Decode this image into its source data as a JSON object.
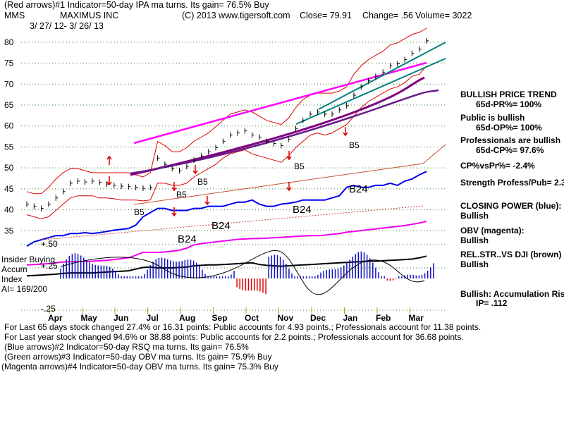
{
  "header": {
    "line1": "(Red arrows)#1 Indicator=50-day IPA ma turns. Its gain= 76.5% Buy",
    "symbol": "MMS",
    "company": "MAXIMUS INC",
    "copyright": "(C) 2013 www.tigersoft.com",
    "close": "Close=  79.91",
    "change": "Change= .56",
    "volume": "Volume= 3022",
    "date_range": "3/ 27/ 12- 3/ 26/ 13"
  },
  "sidebar": {
    "trend_title": "BULLISH PRICE TREND",
    "pr": "65d-PR%= 100%",
    "public": "Public is bullish",
    "op": "65d-OP%= 100%",
    "pros": "Professionals are bullish",
    "cp": "65d-CP%= 97.6%",
    "cpvspr": "CP%vsPr%= -2.4%",
    "strength": "Strength Profess/Pub= 2.3",
    "closing_power": "CLOSING POWER (blue):",
    "closing_power_val": "Bullish",
    "obv": "OBV (magenta):",
    "obv_val": "Bullish",
    "relstr": "REL.STR..VS DJI (brown)",
    "relstr_val": "Bullish",
    "accum": "Bullish: Accumulation Risi",
    "ip": "IP=  .112"
  },
  "left_panel": {
    "insider": "Insider Buying",
    "accum": "Accum",
    "index": "Index",
    "ai": "AI= 169/200"
  },
  "footer": {
    "line1": "For Last 65 days stock changed  27.4% or  16.31 points:  Public accounts for  4.93 points.;  Professionals account for  11.38 points.",
    "line2": "For Last year stock changed  94.6% or  38.88 points:  Public accounts for  2.2 points.;  Professionals account for  36.68 points.",
    "line3": "(Blue arrows)#2 Indicator=50-day RSQ ma turns. Its gain= 76.5%",
    "line4": "(Green arrows)#3 Indicator=50-day OBV ma turns. Its gain= 75.9% Buy",
    "line5": "(Magenta arrows)#4 Indicator=50-day OBV ma turns. Its gain= 75.3% Buy"
  },
  "chart_data": {
    "type": "line",
    "title": "MMS MAXIMUS INC",
    "price_axis": {
      "ticks": [
        80,
        75,
        70,
        65,
        60,
        55,
        50,
        45,
        40,
        35
      ],
      "ylim": [
        30,
        83
      ]
    },
    "accum_axis": {
      "labels": [
        "+.50",
        "+.25",
        "-.25"
      ]
    },
    "months": [
      "Apr",
      "May",
      "Jun",
      "Jul",
      "Aug",
      "Sep",
      "Oct",
      "Nov",
      "Dec",
      "Jan",
      "Feb",
      "Mar"
    ],
    "price_close": [
      41,
      40.5,
      40,
      41,
      42.5,
      44,
      46,
      46.5,
      46.3,
      46.5,
      46.2,
      45.8,
      45.5,
      45.3,
      45.2,
      45,
      44.8,
      45,
      52,
      50.5,
      49.5,
      49,
      50,
      51.5,
      52.5,
      53.5,
      54.5,
      56,
      57.5,
      58,
      58.5,
      57.5,
      57,
      56,
      55.5,
      55,
      56.5,
      59,
      61,
      62.5,
      63,
      62.5,
      62.5,
      63.5,
      64.5,
      67,
      69,
      70.5,
      71.5,
      72.5,
      74,
      74.5,
      75.5,
      77,
      78,
      80
    ],
    "price_high_band": [
      44,
      43.5,
      43.5,
      45,
      47,
      48.5,
      49.5,
      49.5,
      49,
      48.5,
      48.5,
      48.5,
      48.5,
      48.5,
      48.5,
      48,
      47.5,
      48.5,
      56,
      55,
      53.5,
      53.5,
      54.5,
      56,
      57,
      58,
      59.5,
      61,
      62.5,
      63,
      63.5,
      63,
      62,
      61,
      60.5,
      60,
      61.5,
      64,
      66,
      67,
      67.5,
      67.5,
      67.5,
      68,
      69,
      72,
      74,
      75.5,
      76.5,
      77.5,
      79,
      79.5,
      80.5,
      81.5,
      82,
      83
    ],
    "price_low_band": [
      38.5,
      38,
      37.5,
      38,
      39.5,
      41,
      42.5,
      43,
      43,
      43,
      42.5,
      42.5,
      42.3,
      42,
      42,
      42,
      41.8,
      42,
      46,
      46,
      45.5,
      45.5,
      46,
      47.5,
      48.5,
      49.5,
      50.5,
      52,
      53,
      53.5,
      54,
      53,
      52.5,
      52,
      51.5,
      51,
      52.5,
      54.5,
      56,
      57.5,
      58,
      57.5,
      58,
      59,
      60,
      62,
      64,
      65.5,
      66.5,
      67.5,
      68.5,
      69,
      70,
      71.5,
      72,
      74
    ],
    "series": [
      {
        "name": "Closing Power (blue)",
        "color": "#0000ee",
        "values": [
          31,
          32,
          32.5,
          33,
          33.5,
          33.5,
          34,
          34,
          34.2,
          34,
          34.2,
          34.5,
          34.8,
          35,
          35.2,
          36,
          38,
          39,
          40,
          40,
          39.5,
          39.5,
          39.5,
          40,
          40,
          40.5,
          40.5,
          40.5,
          41,
          41.5,
          41.5,
          42,
          41,
          40.5,
          40.5,
          41,
          41.2,
          41.5,
          42,
          42,
          42,
          42,
          42.5,
          43,
          45,
          45.5,
          45,
          45,
          45.5,
          45.5,
          46,
          45.5,
          46.5,
          47,
          48,
          48.8
        ]
      },
      {
        "name": "OBV (magenta)",
        "color": "#ee00ee",
        "values": [
          26.5,
          26.6,
          26.7,
          26.8,
          27,
          27.2,
          27.3,
          27.3,
          27.3,
          27.4,
          27.5,
          27.6,
          27.8,
          28,
          28.2,
          28.8,
          29.5,
          29.5,
          29.5,
          29.6,
          29.8,
          30,
          30.5,
          31.3,
          31.6,
          31.8,
          32,
          32.2,
          32.4,
          32.6,
          32.7,
          32.8,
          32.8,
          32.9,
          33,
          33.1,
          33.2,
          33.3,
          33.4,
          33.5,
          33.5,
          33.6,
          33.8,
          34,
          34.3,
          34.5,
          34.7,
          34.9,
          35.1,
          35.3,
          35.5,
          35.7,
          35.9,
          36.2,
          36.5,
          36.9
        ]
      },
      {
        "name": "Rel.Str vs DJI (brown)",
        "color": "#000000",
        "values": [
          23.9,
          24,
          24.1,
          24.2,
          24.3,
          24.5,
          24.6,
          24.6,
          24.6,
          24.6,
          24.7,
          24.8,
          24.9,
          25,
          25.1,
          25.5,
          25.9,
          26,
          25.8,
          25.8,
          25.8,
          25.9,
          26,
          26.3,
          26.4,
          26.5,
          26.5,
          26.6,
          26.7,
          26.8,
          26.9,
          27,
          26.6,
          26.4,
          26.3,
          26.2,
          26.3,
          26.4,
          26.5,
          26.6,
          26.7,
          26.8,
          26.9,
          27,
          27.1,
          27.2,
          27.3,
          27.4,
          27.4,
          27.5,
          27.6,
          27.7,
          27.8,
          27.9,
          28.2,
          28.6
        ]
      }
    ],
    "signal_labels": [
      "B5",
      "B5",
      "B5",
      "B5",
      "B5",
      "B24",
      "B24",
      "B24",
      "B24"
    ]
  }
}
